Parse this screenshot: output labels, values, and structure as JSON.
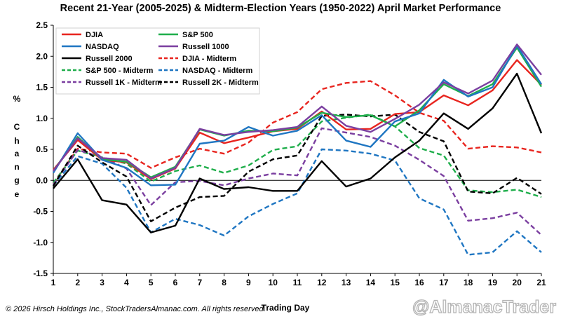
{
  "chart_data": {
    "type": "line",
    "title": "Recent 21-Year (2005-2025) & Midterm-Election Years (1950-2022) April Market Performance",
    "xlabel": "Trading Day",
    "ylabel": [
      "%",
      "C",
      "h",
      "a",
      "n",
      "g",
      "e"
    ],
    "x": [
      1,
      2,
      3,
      4,
      5,
      6,
      7,
      8,
      9,
      10,
      11,
      12,
      13,
      14,
      15,
      16,
      17,
      18,
      19,
      20,
      21
    ],
    "x_tick_labels": [
      "1",
      "2",
      "3",
      "4",
      "5",
      "6",
      "7",
      "8",
      "9",
      "10",
      "11",
      "12",
      "13",
      "14",
      "15",
      "16",
      "17",
      "18",
      "19",
      "20",
      "21"
    ],
    "ylim": [
      -1.5,
      2.5
    ],
    "y_ticks": [
      2.5,
      2.0,
      1.5,
      1.0,
      0.5,
      0.0,
      -0.5,
      -1.0,
      -1.5
    ],
    "y_tick_labels": [
      "2.5",
      "2.0",
      "1.5",
      "1.0",
      "0.5",
      "0.0",
      "-0.5",
      "-1.0",
      "-1.5"
    ],
    "grid": false,
    "legend_position": "top-left",
    "series": [
      {
        "name": "DJIA",
        "color": "#e8251f",
        "dash": false,
        "values": [
          0.17,
          0.65,
          0.33,
          0.29,
          0.02,
          0.19,
          0.77,
          0.6,
          0.69,
          0.79,
          0.83,
          1.11,
          0.82,
          0.83,
          1.07,
          1.1,
          1.37,
          1.21,
          1.45,
          1.94,
          1.54
        ]
      },
      {
        "name": "S&P 500",
        "color": "#1fae4b",
        "dash": false,
        "values": [
          0.15,
          0.7,
          0.34,
          0.3,
          0.05,
          0.22,
          0.82,
          0.72,
          0.8,
          0.79,
          0.85,
          1.09,
          1.02,
          1.05,
          0.87,
          1.13,
          1.55,
          1.36,
          1.55,
          2.14,
          1.51
        ]
      },
      {
        "name": "NASDAQ",
        "color": "#1f76c2",
        "dash": false,
        "values": [
          0.12,
          0.76,
          0.33,
          0.2,
          -0.08,
          -0.07,
          0.59,
          0.64,
          0.86,
          0.72,
          0.8,
          1.05,
          0.64,
          0.54,
          0.95,
          1.08,
          1.62,
          1.35,
          1.5,
          2.17,
          1.55
        ]
      },
      {
        "name": "Russell 1000",
        "color": "#7b3fa0",
        "dash": false,
        "values": [
          0.15,
          0.68,
          0.36,
          0.33,
          0.03,
          0.2,
          0.83,
          0.73,
          0.78,
          0.81,
          0.86,
          1.19,
          0.88,
          0.78,
          0.99,
          1.22,
          1.58,
          1.4,
          1.61,
          2.19,
          1.7
        ]
      },
      {
        "name": "Russell 2000",
        "color": "#000000",
        "dash": false,
        "values": [
          -0.13,
          0.34,
          -0.32,
          -0.39,
          -0.84,
          -0.73,
          0.03,
          -0.14,
          -0.11,
          -0.17,
          -0.17,
          0.31,
          -0.1,
          0.03,
          0.37,
          0.64,
          1.08,
          0.83,
          1.16,
          1.72,
          0.76
        ]
      },
      {
        "name": "DJIA - Midterm",
        "color": "#e8251f",
        "dash": true,
        "values": [
          -0.05,
          0.51,
          0.45,
          0.43,
          0.2,
          0.37,
          0.51,
          0.43,
          0.61,
          0.93,
          1.1,
          1.47,
          1.57,
          1.6,
          1.37,
          1.09,
          0.96,
          0.51,
          0.55,
          0.53,
          0.45
        ]
      },
      {
        "name": "S&P 500 - Midterm",
        "color": "#1fae4b",
        "dash": true,
        "values": [
          -0.04,
          0.48,
          0.37,
          0.27,
          -0.02,
          0.15,
          0.24,
          0.12,
          0.24,
          0.49,
          0.55,
          0.95,
          1.01,
          1.06,
          0.87,
          0.52,
          0.4,
          -0.16,
          -0.19,
          -0.15,
          -0.27
        ]
      },
      {
        "name": "NASDAQ - Midterm",
        "color": "#1f76c2",
        "dash": true,
        "values": [
          -0.08,
          0.39,
          0.27,
          -0.12,
          -0.84,
          -0.62,
          -0.72,
          -0.89,
          -0.58,
          -0.38,
          -0.21,
          0.5,
          0.48,
          0.43,
          0.32,
          -0.29,
          -0.47,
          -1.2,
          -1.16,
          -0.82,
          -1.16
        ]
      },
      {
        "name": "Russell 1K - Midterm",
        "color": "#7b3fa0",
        "dash": true,
        "values": [
          -0.07,
          0.49,
          0.37,
          0.19,
          -0.4,
          -0.03,
          -0.01,
          -0.08,
          0.03,
          0.11,
          0.08,
          0.84,
          0.77,
          0.7,
          0.56,
          0.33,
          0.07,
          -0.65,
          -0.61,
          -0.52,
          -0.88
        ]
      },
      {
        "name": "Russell 2K - Midterm",
        "color": "#000000",
        "dash": true,
        "values": [
          -0.09,
          0.56,
          0.29,
          0.06,
          -0.66,
          -0.44,
          -0.27,
          -0.25,
          0.14,
          0.34,
          0.4,
          1.04,
          1.06,
          1.03,
          1.06,
          0.78,
          0.63,
          -0.18,
          -0.21,
          0.04,
          -0.22
        ]
      }
    ],
    "legend_order": [
      "DJIA",
      "S&P 500",
      "NASDAQ",
      "Russell 1000",
      "Russell 2000",
      "DJIA - Midterm",
      "S&P 500 - Midterm",
      "NASDAQ - Midterm",
      "Russell 1K - Midterm",
      "Russell 2K - Midterm"
    ]
  },
  "footer": {
    "copyright": "© 2026 Hirsch Holdings Inc., StockTradersAlmanac.com. All rights reserved.",
    "watermark": "@AlmanacTrader"
  }
}
